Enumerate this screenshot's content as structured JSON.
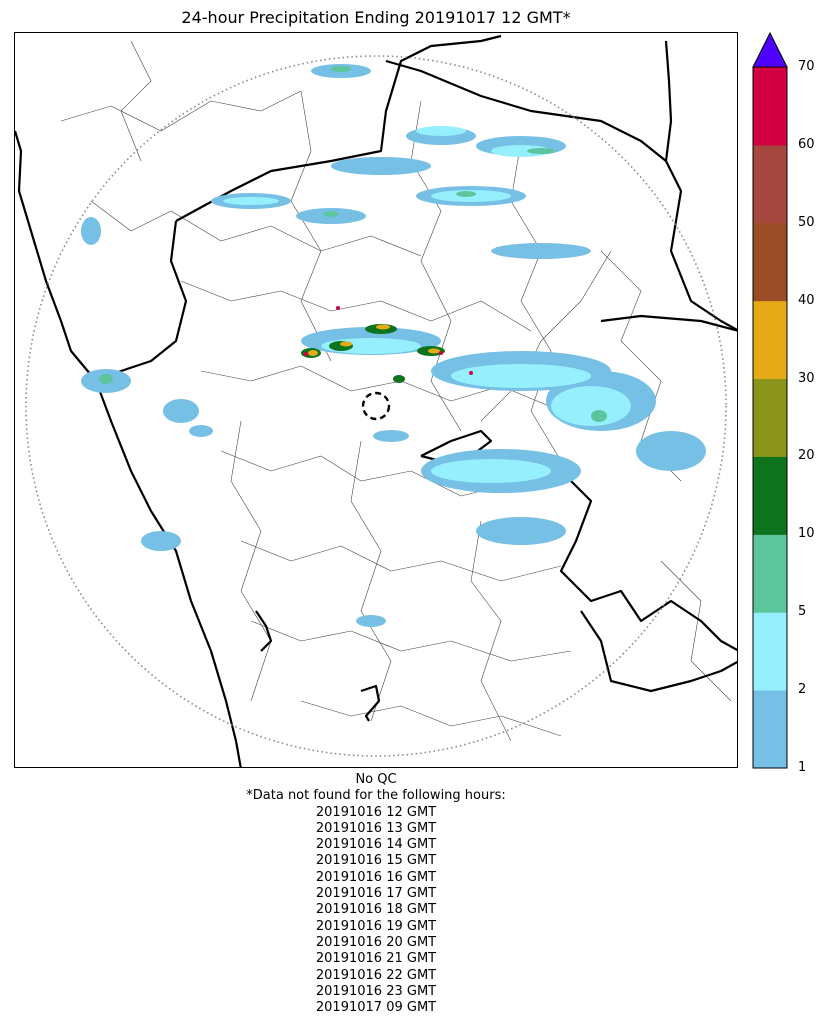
{
  "title": "24-hour Precipitation Ending 20191017 12 GMT*",
  "colorbar": {
    "ticks": [
      "1",
      "2",
      "5",
      "10",
      "20",
      "30",
      "40",
      "50",
      "60",
      "70"
    ],
    "bins": [
      {
        "from": "1",
        "to": "2",
        "color": "#76bfe5"
      },
      {
        "from": "2",
        "to": "5",
        "color": "#96effc"
      },
      {
        "from": "5",
        "to": "10",
        "color": "#5cc59b"
      },
      {
        "from": "10",
        "to": "20",
        "color": "#0d731c"
      },
      {
        "from": "20",
        "to": "30",
        "color": "#8a9418"
      },
      {
        "from": "30",
        "to": "40",
        "color": "#e5aa17"
      },
      {
        "from": "40",
        "to": "50",
        "color": "#9a4e27"
      },
      {
        "from": "50",
        "to": "60",
        "color": "#a5463f"
      },
      {
        "from": "60",
        "to": "70",
        "color": "#d30041"
      }
    ],
    "extend_max_color": "#5000ff"
  },
  "notes": {
    "qc": "No QC",
    "missing_header": "*Data not found for the following hours:",
    "missing_hours": [
      "20191016 12 GMT",
      "20191016 13 GMT",
      "20191016 14 GMT",
      "20191016 15 GMT",
      "20191016 16 GMT",
      "20191016 17 GMT",
      "20191016 18 GMT",
      "20191016 19 GMT",
      "20191016 20 GMT",
      "20191016 21 GMT",
      "20191016 22 GMT",
      "20191016 23 GMT",
      "20191017 09 GMT"
    ]
  }
}
